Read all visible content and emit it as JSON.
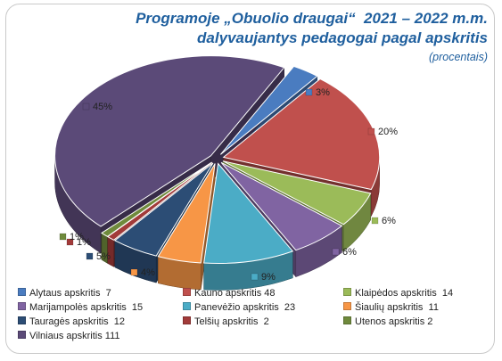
{
  "chart": {
    "title_line1": "Programoje „Obuolio draugai“  2021 – 2022 m.m.",
    "title_line2": "dalyvaujantys pedagogai pagal apskritis",
    "subtitle": "(procentais)"
  },
  "chart_data": {
    "type": "pie",
    "style": "3D exploded",
    "title": "Programoje „Obuolio draugai“  2021 – 2022 m.m. dalyvaujantys pedagogai pagal apskritis",
    "subtitle": "(procentais)",
    "legend_position": "bottom",
    "slices": [
      {
        "name": "Alytaus apskritis",
        "value": 7,
        "percent_label": "3%",
        "color": "#4a7cc0"
      },
      {
        "name": "Kauno apskritis",
        "value": 48,
        "percent_label": "20%",
        "color": "#c0504d"
      },
      {
        "name": "Klaipėdos apskritis",
        "value": 14,
        "percent_label": "6%",
        "color": "#9bbb59"
      },
      {
        "name": "Marijampolės apskritis",
        "value": 15,
        "percent_label": "6%",
        "color": "#8064a2"
      },
      {
        "name": "Panevėžio apskritis",
        "value": 23,
        "percent_label": "9%",
        "color": "#4bacc6"
      },
      {
        "name": "Šiaulių apskritis",
        "value": 11,
        "percent_label": "4%",
        "color": "#f79646"
      },
      {
        "name": "Tauragės apskritis",
        "value": 12,
        "percent_label": "5%",
        "color": "#2c4d75"
      },
      {
        "name": "Telšių apskritis",
        "value": 2,
        "percent_label": "1%",
        "color": "#a23b3a"
      },
      {
        "name": "Utenos apskritis",
        "value": 2,
        "percent_label": "1%",
        "color": "#6f8a3c"
      },
      {
        "name": "Vilniaus apskritis",
        "value": 111,
        "percent_label": "45%",
        "color": "#5b4a78"
      }
    ]
  },
  "legend": {
    "items": [
      "Alytaus apskritis  7",
      "Kauno apskritis 48",
      "Klaipėdos apskritis  14",
      "Marijampolės apskritis  15",
      "Panevėžio apskritis  23",
      "Šiaulių apskritis  11",
      "Tauragės apskritis  12",
      "Telšių apskritis  2",
      "Utenos apskritis 2",
      "Vilniaus apskritis 111"
    ]
  }
}
